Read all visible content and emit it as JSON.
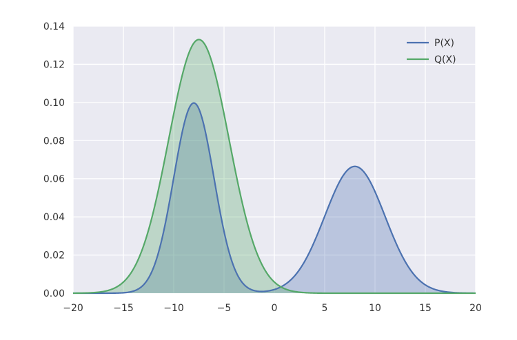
{
  "chart_data": {
    "type": "area",
    "title": "",
    "xlabel": "",
    "ylabel": "",
    "xlim": [
      -20,
      20
    ],
    "ylim": [
      0,
      0.14
    ],
    "x_ticks": [
      -20,
      -15,
      -10,
      -5,
      0,
      5,
      10,
      15,
      20
    ],
    "x_tick_labels": [
      "−20",
      "−15",
      "−10",
      "−5",
      "0",
      "5",
      "10",
      "15",
      "20"
    ],
    "y_ticks": [
      0,
      0.02,
      0.04,
      0.06,
      0.08,
      0.1,
      0.12,
      0.14
    ],
    "y_tick_labels": [
      "0.00",
      "0.02",
      "0.04",
      "0.06",
      "0.08",
      "0.10",
      "0.12",
      "0.14"
    ],
    "grid": true,
    "legend_position": "top-right",
    "series": [
      {
        "name": "P(X)",
        "color": "#4c72b0",
        "fill_color": "#4c72b0",
        "components": [
          {
            "mu": -8,
            "sigma": 2,
            "weight": 0.5
          },
          {
            "mu": 8,
            "sigma": 3,
            "weight": 0.5
          }
        ]
      },
      {
        "name": "Q(X)",
        "color": "#55a868",
        "fill_color": "#55a868",
        "components": [
          {
            "mu": -7.5,
            "sigma": 3,
            "weight": 1.0
          }
        ]
      }
    ]
  }
}
